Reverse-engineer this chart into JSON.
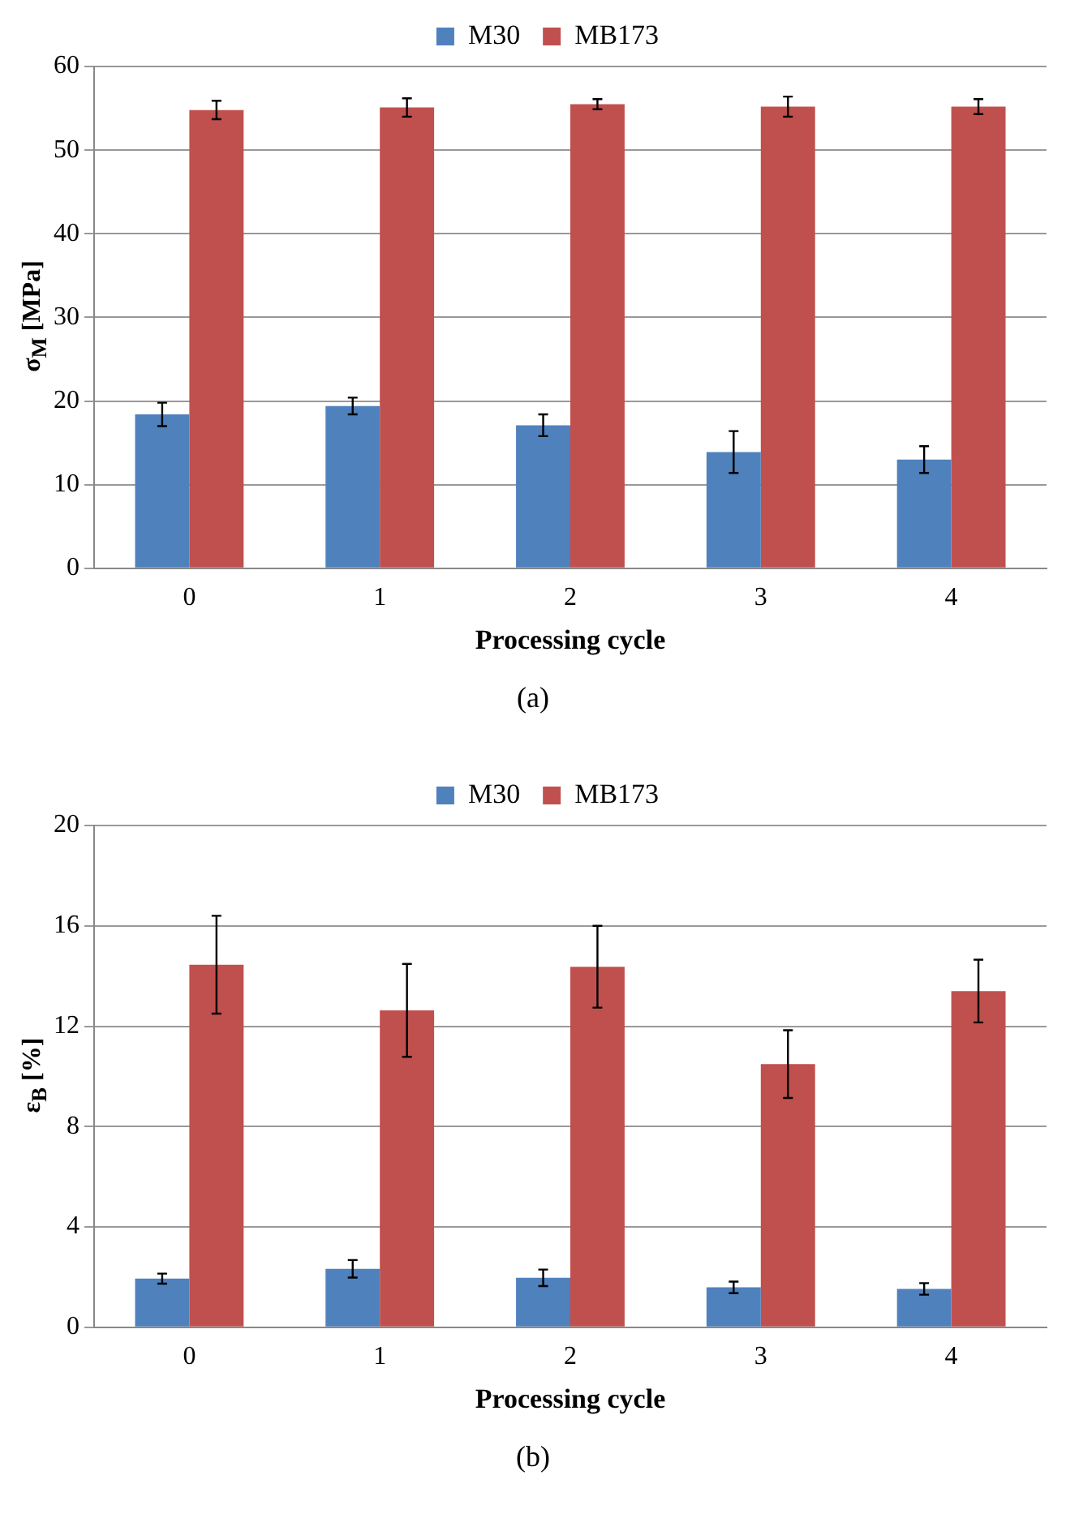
{
  "chart_data": [
    {
      "type": "bar",
      "categories": [
        "0",
        "1",
        "2",
        "3",
        "4"
      ],
      "xlabel": "Processing cycle",
      "ylabel": "σ$_{M}$ [MPa]",
      "ylim": [
        0,
        60
      ],
      "yticks": [
        0,
        10,
        20,
        30,
        40,
        50,
        60
      ],
      "grid": "y",
      "legend": "top",
      "annotations": [
        "(a)"
      ],
      "series": [
        {
          "name": "M30",
          "color": "#4f81bd",
          "values": [
            18.4,
            19.4,
            17.1,
            13.9,
            13.0
          ],
          "errors": [
            1.4,
            1.0,
            1.3,
            2.5,
            1.6
          ]
        },
        {
          "name": "MB173",
          "color": "#c0504d",
          "values": [
            54.8,
            55.1,
            55.5,
            55.2,
            55.2
          ],
          "errors": [
            1.1,
            1.1,
            0.6,
            1.2,
            0.9
          ]
        }
      ]
    },
    {
      "type": "bar",
      "categories": [
        "0",
        "1",
        "2",
        "3",
        "4"
      ],
      "xlabel": "Processing cycle",
      "ylabel": "ε$_{B}$ [%]",
      "ylim": [
        0,
        20
      ],
      "yticks": [
        0,
        4,
        8,
        12,
        16,
        20
      ],
      "grid": "y",
      "legend": "top",
      "annotations": [
        "(b)"
      ],
      "series": [
        {
          "name": "M30",
          "color": "#4f81bd",
          "values": [
            1.94,
            2.33,
            1.97,
            1.59,
            1.53
          ],
          "errors": [
            0.2,
            0.35,
            0.33,
            0.23,
            0.23
          ]
        },
        {
          "name": "MB173",
          "color": "#c0504d",
          "values": [
            14.45,
            12.63,
            14.37,
            10.49,
            13.4
          ],
          "errors": [
            1.95,
            1.85,
            1.63,
            1.35,
            1.25
          ]
        }
      ]
    }
  ]
}
